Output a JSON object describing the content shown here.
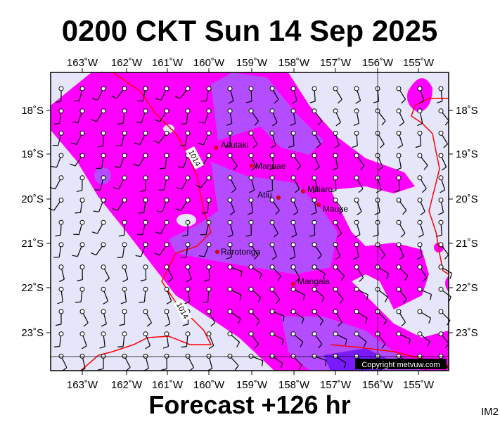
{
  "header": {
    "title": "0200 CKT Sun 14 Sep 2025"
  },
  "axes": {
    "longitude": [
      "163˚W",
      "162˚W",
      "161˚W",
      "160˚W",
      "159˚W",
      "158˚W",
      "157˚W",
      "156˚W",
      "155˚W"
    ],
    "latitude": [
      "18˚S",
      "19˚S",
      "20˚S",
      "21˚S",
      "22˚S",
      "23˚S"
    ]
  },
  "places": [
    "Aitutaki",
    "Manuae",
    "Atiu",
    "Mitiaro",
    "Mauke",
    "Rarotonga",
    "Mangaia"
  ],
  "isobar_labels": [
    "1014",
    "1014"
  ],
  "copyright": "Copyright metvuw.com",
  "footer": "Forecast +126 hr",
  "image_id": "IM2"
}
